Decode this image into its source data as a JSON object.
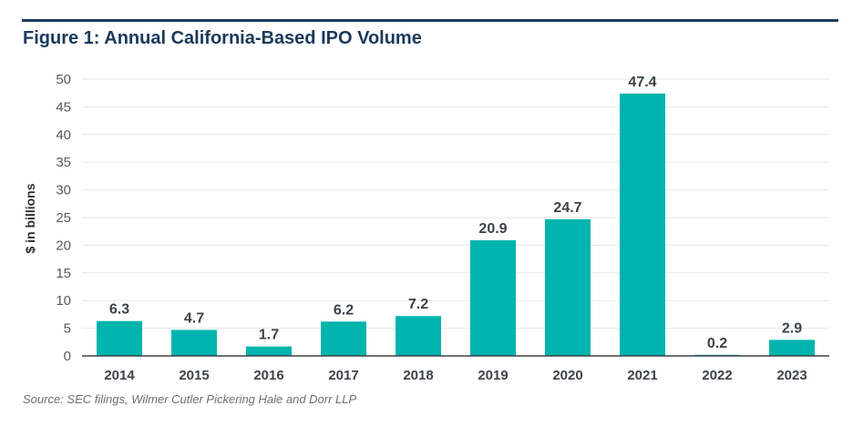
{
  "chart_data": {
    "type": "bar",
    "title": "Figure 1: Annual California-Based IPO Volume",
    "ylabel": "$ in billions",
    "xlabel": "",
    "categories": [
      "2014",
      "2015",
      "2016",
      "2017",
      "2018",
      "2019",
      "2020",
      "2021",
      "2022",
      "2023"
    ],
    "values": [
      6.3,
      4.7,
      1.7,
      6.2,
      7.2,
      20.9,
      24.7,
      47.4,
      0.2,
      2.9
    ],
    "ylim": [
      0,
      50
    ],
    "yticks": [
      0,
      5,
      10,
      15,
      20,
      25,
      30,
      35,
      40,
      45,
      50
    ],
    "grid": true,
    "bar_color": "#00b4ae",
    "source": "Source: SEC filings, Wilmer Cutler Pickering Hale and Dorr LLP"
  }
}
